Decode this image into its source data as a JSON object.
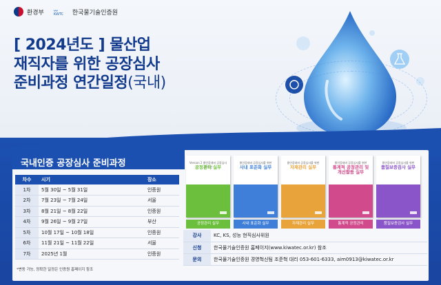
{
  "header": {
    "logo_left": "환경부",
    "logo_right": "한국물기술인증원",
    "logo_right_mark": "KWTC"
  },
  "title": {
    "line1": "[ 2024년도 ] 물산업",
    "line2": "재직자를 위한 공장심사",
    "line3_bold": "준비과정 연간일정",
    "line3_light": "(국내)"
  },
  "schedule": {
    "heading": "국내인증 공장심사 준비과정",
    "columns": [
      "차수",
      "시기",
      "장소"
    ],
    "rows": [
      {
        "round": "1차",
        "period": "5월 30일 ~ 5월 31일",
        "place": "인증원"
      },
      {
        "round": "2차",
        "period": "7월 23일 ~ 7월 24일",
        "place": "서울"
      },
      {
        "round": "3차",
        "period": "8월 21일 ~ 8월 22일",
        "place": "인증원"
      },
      {
        "round": "4차",
        "period": "9월 26일 ~ 9월 27일",
        "place": "부산"
      },
      {
        "round": "5차",
        "period": "10월 17일 ~ 10월 18일",
        "place": "인증원"
      },
      {
        "round": "6차",
        "period": "11월 21일 ~ 11월 22일",
        "place": "서울"
      },
      {
        "round": "7차",
        "period": "2025년 1월",
        "place": "인증원"
      }
    ],
    "note": "*변동 가능, 정확한 일정은 인증원 홈페이지 참조"
  },
  "books": [
    {
      "top": "Version 2 물인증대비 공장심사를 위한",
      "title": "공정관리 실무",
      "label": "공정관리 실무",
      "color": "#6cbf3c"
    },
    {
      "top": "물인증대비 공장심사를 위한",
      "title": "사내 표준화 실무",
      "label": "사내 표준화 실무",
      "color": "#3f7fd9"
    },
    {
      "top": "물인증대비 공장심사를 위한",
      "title": "자재관리 실무",
      "label": "자재관리 실무",
      "color": "#e8a33a"
    },
    {
      "top": "물인증대비 공장심사를 위한",
      "title": "통계적 공정관리 및 개선활동 실무",
      "label": "통계적 공정관리",
      "color": "#d14a8b"
    },
    {
      "top": "물인증대비 공장심사를 위한",
      "title": "품질보증검사 실무",
      "label": "품질보증검사 실무",
      "color": "#8a55c8"
    }
  ],
  "info": [
    {
      "key": "강사",
      "value": "KC, KS, 성능 현직심사위원"
    },
    {
      "key": "신청",
      "value": "한국물기술인증원 홈페이지(www.kiwatec.or.kr) 참조"
    },
    {
      "key": "문의",
      "value": "한국물기술인증원 경영혁신팀 조준혁 대리 053-601-6333, aim0913@kiwatec.or.kr"
    }
  ]
}
